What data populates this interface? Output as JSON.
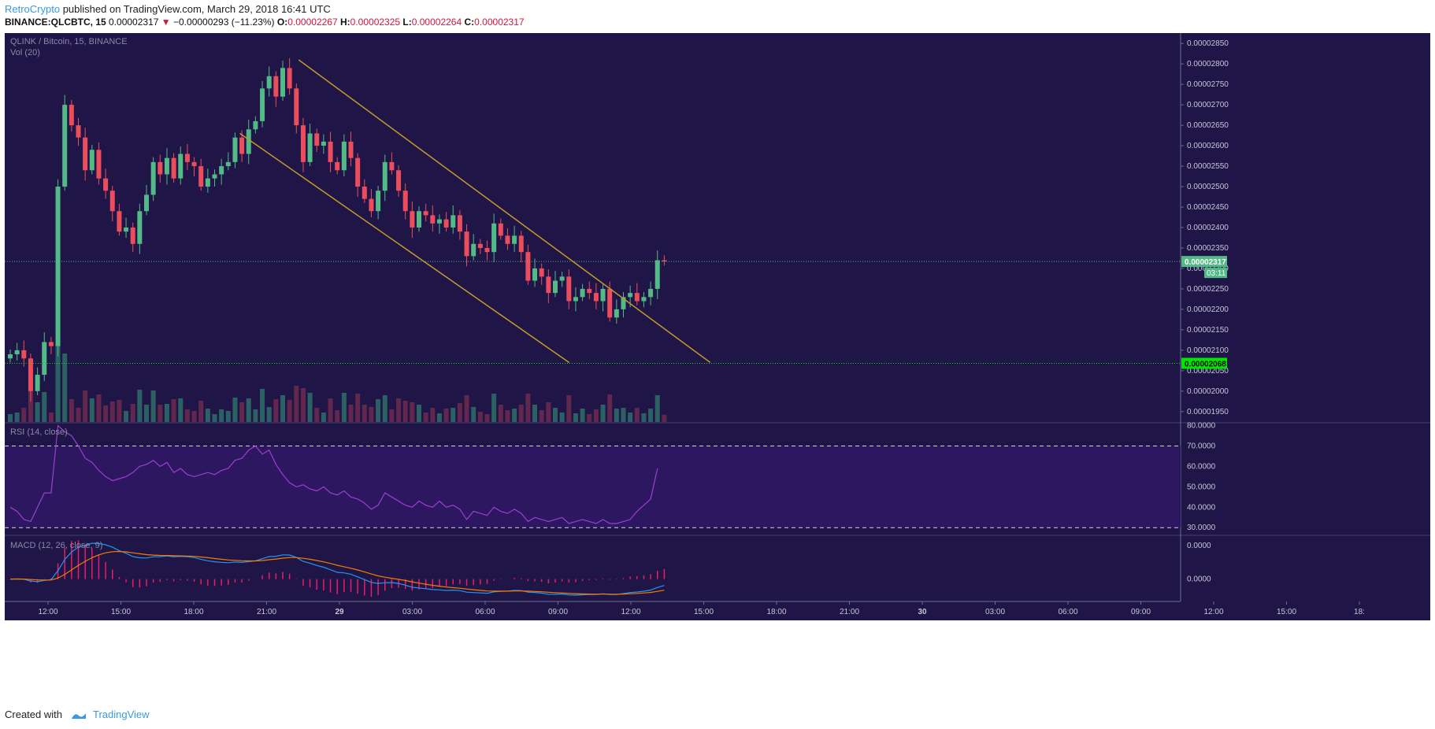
{
  "header": {
    "author": "RetroCrypto",
    "published": " published on TradingView.com, March 29, 2018 16:41 UTC",
    "symbol": "BINANCE:QLCBTC, 15",
    "last": "0.00002317",
    "arrow": "▼",
    "change": "−0.00000293 (−11.23%)",
    "o_label": "O:",
    "o_value": "0.00002267",
    "h_label": "H:",
    "h_value": "0.00002325",
    "l_label": "L:",
    "l_value": "0.00002264",
    "c_label": "C:",
    "c_value": "0.00002317"
  },
  "footer": {
    "created_with": "Created with",
    "brand": "TradingView"
  },
  "colors": {
    "background": "#1f1547",
    "up": "#53b987",
    "down": "#eb4d5c",
    "channel": "#c49a2b",
    "rsi_line": "#9b3fd0",
    "rsi_band": "#2d1760",
    "macd_line": "#2196f3",
    "signal_line": "#f57c00",
    "hist": "#e91e63",
    "support": "#00e600"
  },
  "chart_data": {
    "type": "candlestick",
    "title": "QLINK / Bitcoin, 15, BINANCE",
    "volume_label": "Vol (20)",
    "y_ticks": [
      "0.00002850",
      "0.00002800",
      "0.00002750",
      "0.00002700",
      "0.00002650",
      "0.00002600",
      "0.00002550",
      "0.00002500",
      "0.00002450",
      "0.00002400",
      "0.00002350",
      "0.00002300",
      "0.00002250",
      "0.00002200",
      "0.00002150",
      "0.00002100",
      "0.00002050",
      "0.00002000",
      "0.00001950"
    ],
    "y_range": [
      1.94e-05,
      2.86e-05
    ],
    "x_labels": [
      "12:00",
      "15:00",
      "18:00",
      "21:00",
      "29",
      "03:00",
      "06:00",
      "09:00",
      "12:00",
      "15:00",
      "18:00",
      "21:00",
      "30",
      "03:00",
      "06:00",
      "09:00",
      "12:00",
      "15:00",
      "18:"
    ],
    "last_price": {
      "label": "0.00002317",
      "countdown": "03:11",
      "value": 2.317e-05
    },
    "support_level": {
      "label": "0.00002068",
      "value": 2.068e-05
    },
    "closes": [
      2.09e-05,
      2.1e-05,
      2.08e-05,
      2e-05,
      2.04e-05,
      2.12e-05,
      2.11e-05,
      2.5e-05,
      2.7e-05,
      2.65e-05,
      2.62e-05,
      2.54e-05,
      2.59e-05,
      2.52e-05,
      2.49e-05,
      2.44e-05,
      2.39e-05,
      2.4e-05,
      2.36e-05,
      2.44e-05,
      2.48e-05,
      2.56e-05,
      2.53e-05,
      2.57e-05,
      2.52e-05,
      2.58e-05,
      2.56e-05,
      2.55e-05,
      2.5e-05,
      2.52e-05,
      2.53e-05,
      2.55e-05,
      2.56e-05,
      2.62e-05,
      2.58e-05,
      2.64e-05,
      2.66e-05,
      2.74e-05,
      2.77e-05,
      2.72e-05,
      2.79e-05,
      2.74e-05,
      2.65e-05,
      2.56e-05,
      2.63e-05,
      2.6e-05,
      2.61e-05,
      2.56e-05,
      2.54e-05,
      2.61e-05,
      2.57e-05,
      2.5e-05,
      2.47e-05,
      2.44e-05,
      2.49e-05,
      2.56e-05,
      2.54e-05,
      2.49e-05,
      2.44e-05,
      2.4e-05,
      2.44e-05,
      2.43e-05,
      2.41e-05,
      2.42e-05,
      2.4e-05,
      2.43e-05,
      2.39e-05,
      2.33e-05,
      2.36e-05,
      2.35e-05,
      2.34e-05,
      2.41e-05,
      2.38e-05,
      2.36e-05,
      2.38e-05,
      2.34e-05,
      2.27e-05,
      2.3e-05,
      2.28e-05,
      2.24e-05,
      2.27e-05,
      2.28e-05,
      2.22e-05,
      2.23e-05,
      2.25e-05,
      2.24e-05,
      2.22e-05,
      2.25e-05,
      2.18e-05,
      2.2e-05,
      2.23e-05,
      2.24e-05,
      2.22e-05,
      2.23e-05,
      2.25e-05,
      2.32e-05
    ],
    "final_close": 2.317e-05,
    "channel_upper": [
      [
        2.81e-05,
        0.25
      ],
      [
        2.07e-05,
        0.6
      ]
    ],
    "channel_lower": [
      [
        2.63e-05,
        0.2
      ],
      [
        2.07e-05,
        0.48
      ]
    ],
    "rsi": {
      "label": "RSI (14, close)",
      "ticks": [
        "80.0000",
        "70.0000",
        "60.0000",
        "50.0000",
        "40.0000",
        "30.0000"
      ],
      "range": [
        27,
        81
      ],
      "bands": [
        70,
        30
      ],
      "values": [
        40,
        38,
        34,
        33,
        40,
        47,
        47,
        80,
        77,
        75,
        70,
        64,
        62,
        58,
        55,
        53,
        54,
        55,
        57,
        60,
        61,
        63,
        60,
        62,
        57,
        59,
        56,
        55,
        56,
        57,
        56,
        58,
        59,
        63,
        64,
        68,
        70,
        66,
        68,
        61,
        56,
        52,
        50,
        51,
        49,
        48,
        50,
        47,
        46,
        48,
        45,
        44,
        42,
        39,
        41,
        47,
        45,
        43,
        41,
        40,
        43,
        41,
        40,
        43,
        40,
        41,
        39,
        34,
        38,
        37,
        36,
        40,
        38,
        37,
        39,
        37,
        33,
        35,
        34,
        33,
        34,
        35,
        32,
        33,
        34,
        33,
        32,
        34,
        32,
        32,
        33,
        34,
        38,
        41,
        44,
        59
      ]
    },
    "macd": {
      "label": "MACD (12, 26, close, 9)",
      "ticks": [
        "0.0000",
        "0.0000"
      ]
    }
  }
}
